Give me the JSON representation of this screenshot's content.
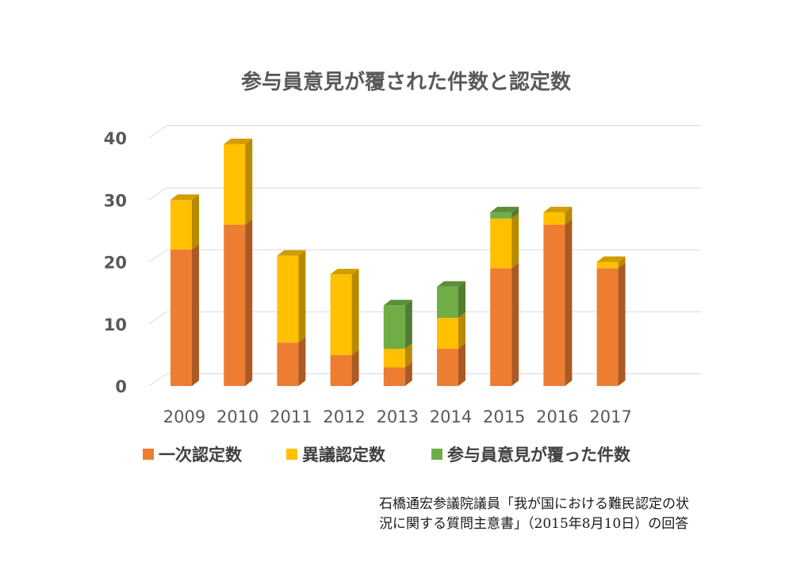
{
  "chart_data": {
    "type": "bar",
    "stacked": true,
    "title": "参与員意見が覆された件数と認定数",
    "categories": [
      "2009",
      "2010",
      "2011",
      "2012",
      "2013",
      "2014",
      "2015",
      "2016",
      "2017"
    ],
    "series": [
      {
        "name": "一次認定数",
        "color": "#ED7D31",
        "values": [
          22,
          26,
          7,
          5,
          3,
          6,
          19,
          26,
          19
        ]
      },
      {
        "name": "異議認定数",
        "color": "#FFC000",
        "values": [
          8,
          13,
          14,
          13,
          3,
          5,
          8,
          2,
          1
        ]
      },
      {
        "name": "参与員意見が覆った件数",
        "color": "#70AD47",
        "values": [
          0,
          0,
          0,
          0,
          7,
          5,
          1,
          0,
          0
        ]
      }
    ],
    "yticks": [
      "0",
      "10",
      "20",
      "30",
      "40"
    ],
    "ylim": [
      0,
      40
    ],
    "grid": true,
    "legend_position": "bottom"
  },
  "source_note": {
    "line1": "石橋通宏参議院議員「我が国における難民認定の状",
    "line2": "況に関する質問主意書」（2015年8月10日）の回答"
  }
}
